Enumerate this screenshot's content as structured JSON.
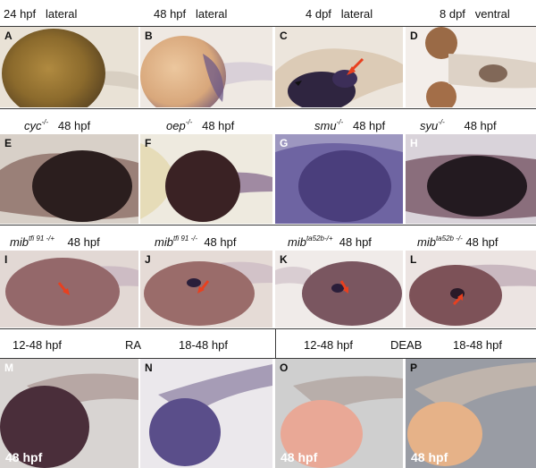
{
  "rows": [
    {
      "headers": [
        {
          "stage": "24 hpf",
          "view": "lateral"
        },
        {
          "stage": "48 hpf",
          "view": "lateral"
        },
        {
          "stage": "4 dpf",
          "view": "lateral"
        },
        {
          "stage": "8 dpf",
          "view": "ventral"
        }
      ],
      "panels": [
        "A",
        "B",
        "C",
        "D"
      ]
    },
    {
      "headers": [
        {
          "genotype": "cyc",
          "sup": "-/-",
          "stage": "48 hpf"
        },
        {
          "genotype": "oep",
          "sup": "-/-",
          "stage": "48 hpf"
        },
        {
          "genotype": "smu",
          "sup": "-/-",
          "stage": "48 hpf"
        },
        {
          "genotype": "syu",
          "sup": "-/-",
          "stage": "48 hpf"
        }
      ],
      "panels": [
        "E",
        "F",
        "G",
        "H"
      ]
    },
    {
      "headers": [
        {
          "genotype": "mib",
          "sup": "tfi 91 -/+",
          "stage": "48 hpf"
        },
        {
          "genotype": "mib",
          "sup": "tfi 91 -/-",
          "stage": "48 hpf"
        },
        {
          "genotype": "mib",
          "sup": "ta52b-/+",
          "stage": "48 hpf"
        },
        {
          "genotype": "mib",
          "sup": "ta52b -/-",
          "stage": "48 hpf"
        }
      ],
      "panels": [
        "I",
        "J",
        "K",
        "L"
      ]
    },
    {
      "headers": {
        "ra_left": "12-48 hpf",
        "ra_label": "RA",
        "ra_right": "18-48 hpf",
        "deab_left": "12-48 hpf",
        "deab_label": "DEAB",
        "deab_right": "18-48 hpf"
      },
      "panels": [
        "M",
        "N",
        "O",
        "P"
      ],
      "bottom_tag": "48 hpf"
    }
  ],
  "colors": {
    "stain_purple": "#3a2a52",
    "arrow_red": "#e8401f",
    "yolk_tan": "#d9b58a"
  }
}
